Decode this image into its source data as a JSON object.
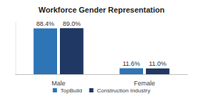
{
  "chart_data": {
    "type": "bar",
    "title": "Workforce Gender Representation",
    "categories": [
      "Male",
      "Female"
    ],
    "series": [
      {
        "name": "TopBuild",
        "color": "#2e75b6",
        "values": [
          88.4,
          11.6
        ],
        "value_labels": [
          "88.4%",
          "11.6%"
        ]
      },
      {
        "name": "Construction Industry",
        "color": "#203864",
        "values": [
          89.0,
          11.0
        ],
        "value_labels": [
          "89.0%",
          "11.0%"
        ]
      }
    ],
    "ylim": [
      0,
      100
    ],
    "grid": false,
    "legend": "bottom",
    "data_labels": true,
    "tick_labels": "x"
  }
}
